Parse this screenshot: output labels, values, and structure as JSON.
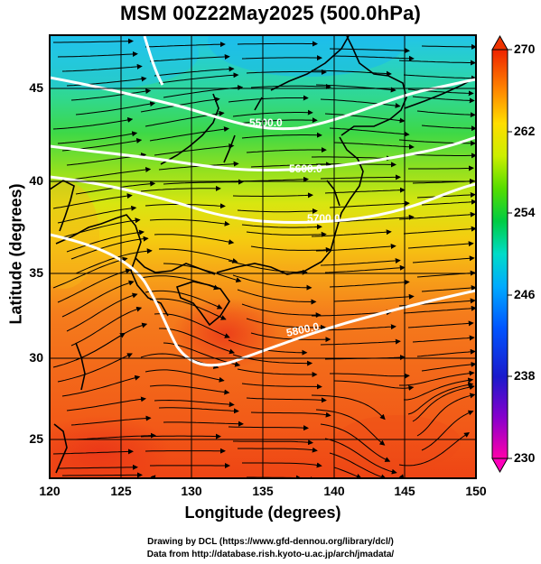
{
  "title": "MSM 00Z22May2025 (500.0hPa)",
  "x_axis": {
    "label": "Longitude (degrees)",
    "ticks": [
      "120",
      "125",
      "130",
      "135",
      "140",
      "145",
      "150"
    ],
    "range": [
      120,
      150
    ]
  },
  "y_axis": {
    "label": "Latitude  (degrees)",
    "ticks": [
      "25",
      "30",
      "35",
      "40",
      "45"
    ],
    "range": [
      22.5,
      47.5
    ]
  },
  "colorbar": {
    "min": 230,
    "max": 270,
    "ticks": [
      "270",
      "262",
      "254",
      "246",
      "238",
      "230"
    ],
    "colors": [
      "#ff00aa",
      "#3300cc",
      "#0033ff",
      "#00aaff",
      "#00e0d0",
      "#00cc44",
      "#55dd00",
      "#ccee00",
      "#ffee00",
      "#ffaa00",
      "#ff6600",
      "#ee2200"
    ]
  },
  "contours": [
    {
      "label": "5500.0",
      "level": 5500
    },
    {
      "label": "5600.0",
      "level": 5600
    },
    {
      "label": "5700.0",
      "level": 5700
    },
    {
      "label": "5800.0",
      "level": 5800
    }
  ],
  "credits": {
    "line1": "Drawing by DCL (https://www.gfd-dennou.org/library/dcl/)",
    "line2": "Data from http://database.rish.kyoto-u.ac.jp/arch/jmadata/"
  }
}
